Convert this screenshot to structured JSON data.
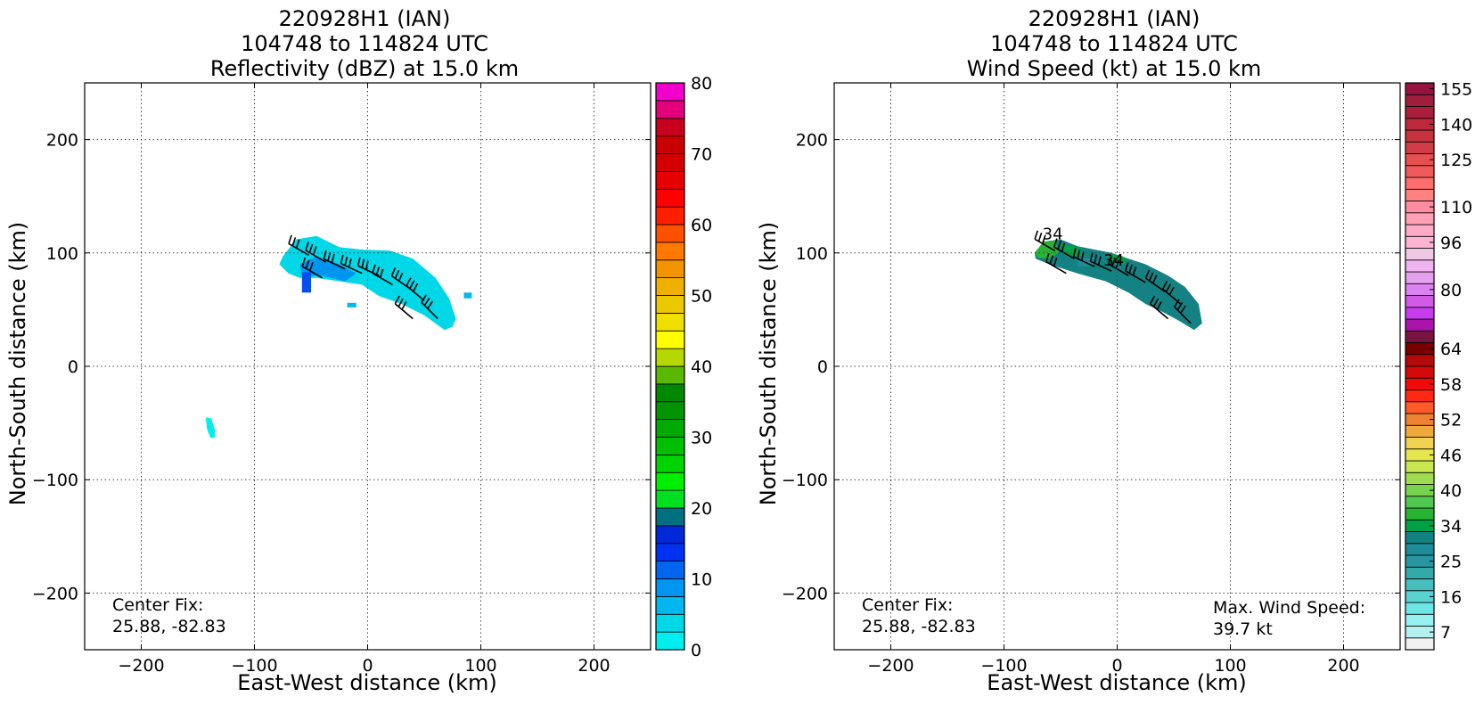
{
  "chart_data": [
    {
      "type": "heatmap",
      "title_lines": [
        "220928H1 (IAN)",
        "104748 to 114824 UTC",
        "Reflectivity (dBZ) at 15.0 km"
      ],
      "xlabel": "East-West distance (km)",
      "ylabel": "North-South distance (km)",
      "xlim": [
        -250,
        250
      ],
      "ylim": [
        -250,
        250
      ],
      "xticks": [
        -200,
        -100,
        0,
        100,
        200
      ],
      "yticks": [
        -200,
        -100,
        0,
        100,
        200
      ],
      "grid": true,
      "annotation_lines": [
        "Center Fix:",
        "25.88, -82.83"
      ],
      "colorbar": {
        "min": 0,
        "max": 80,
        "step": 2.5,
        "ticks": [
          0,
          10,
          20,
          30,
          40,
          50,
          60,
          70,
          80
        ],
        "colors": [
          "#00eeee",
          "#00d8e8",
          "#00b8ee",
          "#0096f0",
          "#0066f0",
          "#0030f0",
          "#0028d8",
          "#007080",
          "#00e020",
          "#00ee00",
          "#00d400",
          "#00be00",
          "#00aa00",
          "#009400",
          "#008800",
          "#5ab800",
          "#b4d800",
          "#ffff00",
          "#f0e000",
          "#ecc800",
          "#f0b000",
          "#f09400",
          "#ff7800",
          "#ff5000",
          "#ff1e00",
          "#ff0000",
          "#e60000",
          "#d40000",
          "#c80000",
          "#c8001e",
          "#e4007a",
          "#f000c8",
          "#e600e6",
          "#c832dc",
          "#aa50d2",
          "#8c46b4",
          "#50285a",
          "#000000"
        ]
      },
      "data_region": {
        "x_range": [
          -80,
          93
        ],
        "y_range": [
          -65,
          117
        ],
        "main_band_vertices": [
          [
            -75,
            97
          ],
          [
            -63,
            112
          ],
          [
            -45,
            115
          ],
          [
            -25,
            105
          ],
          [
            -5,
            103
          ],
          [
            20,
            102
          ],
          [
            40,
            95
          ],
          [
            60,
            78
          ],
          [
            72,
            60
          ],
          [
            78,
            42
          ],
          [
            75,
            35
          ],
          [
            68,
            32
          ],
          [
            50,
            45
          ],
          [
            30,
            55
          ],
          [
            10,
            62
          ],
          [
            -5,
            72
          ],
          [
            -25,
            75
          ],
          [
            -45,
            78
          ],
          [
            -60,
            78
          ],
          [
            -70,
            82
          ],
          [
            -78,
            90
          ]
        ],
        "core_vertices": [
          [
            -60,
            90
          ],
          [
            -45,
            97
          ],
          [
            -25,
            90
          ],
          [
            -10,
            82
          ],
          [
            -20,
            75
          ],
          [
            -40,
            80
          ],
          [
            -58,
            80
          ]
        ],
        "core_color": "#0096f0",
        "cell_vertices": [
          [
            -58,
            83
          ],
          [
            -50,
            83
          ],
          [
            -50,
            65
          ],
          [
            -58,
            65
          ]
        ],
        "cell_color": "#0050f0",
        "small_patches": [
          {
            "vertices": [
              [
                -143,
                -45
              ],
              [
                -138,
                -46
              ],
              [
                -135,
                -56
              ],
              [
                -135,
                -63
              ],
              [
                -139,
                -63
              ],
              [
                -142,
                -55
              ]
            ],
            "color": "#00eeee"
          },
          {
            "vertices": [
              [
                85,
                65
              ],
              [
                92,
                65
              ],
              [
                92,
                60
              ],
              [
                85,
                60
              ]
            ],
            "color": "#00b8ee"
          },
          {
            "vertices": [
              [
                -18,
                56
              ],
              [
                -10,
                56
              ],
              [
                -10,
                52
              ],
              [
                -18,
                52
              ]
            ],
            "color": "#00b8ee"
          }
        ]
      },
      "wind_barbs": [
        {
          "x": -52,
          "y": 98,
          "dir": 300
        },
        {
          "x": -37,
          "y": 92,
          "dir": 300
        },
        {
          "x": -20,
          "y": 86,
          "dir": 295
        },
        {
          "x": -5,
          "y": 82,
          "dir": 295
        },
        {
          "x": 10,
          "y": 80,
          "dir": 295
        },
        {
          "x": 22,
          "y": 72,
          "dir": 300
        },
        {
          "x": 38,
          "y": 68,
          "dir": 305
        },
        {
          "x": 50,
          "y": 58,
          "dir": 310
        },
        {
          "x": -40,
          "y": 78,
          "dir": 300
        },
        {
          "x": 40,
          "y": 42,
          "dir": 310
        },
        {
          "x": 62,
          "y": 42,
          "dir": 315
        }
      ]
    },
    {
      "type": "heatmap",
      "title_lines": [
        "220928H1 (IAN)",
        "104748 to 114824 UTC",
        "Wind Speed (kt) at 15.0 km"
      ],
      "xlabel": "East-West distance (km)",
      "ylabel": "North-South distance (km)",
      "xlim": [
        -250,
        250
      ],
      "ylim": [
        -250,
        250
      ],
      "xticks": [
        -200,
        -100,
        0,
        100,
        200
      ],
      "yticks": [
        -200,
        -100,
        0,
        100,
        200
      ],
      "grid": true,
      "annotation_lines": [
        "Center Fix:",
        "25.88, -82.83"
      ],
      "annotation2_lines": [
        "Max. Wind Speed:",
        "39.7 kt"
      ],
      "colorbar": {
        "min": 4,
        "max": 160,
        "boundaries": [
          4,
          7,
          10,
          13,
          16,
          19,
          22,
          25,
          28,
          31,
          34,
          36,
          38,
          40,
          42,
          44,
          46,
          48,
          50,
          52,
          54,
          56,
          58,
          60,
          62,
          64,
          67,
          70,
          74,
          77,
          80,
          84,
          88,
          92,
          96,
          100,
          104,
          108,
          112,
          116,
          120,
          125,
          130,
          135,
          140,
          145,
          150,
          155,
          160
        ],
        "ticks": [
          7,
          16,
          25,
          34,
          40,
          46,
          52,
          58,
          64,
          80,
          96,
          110,
          125,
          140,
          155
        ],
        "colors": [
          "#f0f0f0",
          "#b4f0f0",
          "#96f0f0",
          "#6ee6e6",
          "#5ad2d2",
          "#46bebe",
          "#32aaaa",
          "#2896a0",
          "#1e8c96",
          "#148282",
          "#00a046",
          "#28b432",
          "#50c850",
          "#78d250",
          "#a0dc50",
          "#c8e650",
          "#e6e650",
          "#f0d250",
          "#f0aa3c",
          "#f08232",
          "#ff5a28",
          "#ff2814",
          "#f00a0a",
          "#d20a0a",
          "#b40a0a",
          "#780000",
          "#781440",
          "#aa14aa",
          "#c83cf0",
          "#d25ae6",
          "#dc82f0",
          "#e6a0f0",
          "#f0b4f0",
          "#f0c8e6",
          "#ffb4d2",
          "#ffaac8",
          "#ffa0b4",
          "#ff8ca0",
          "#ff8282",
          "#ff6e6e",
          "#f05a5a",
          "#e65050",
          "#d23c46",
          "#c8323c",
          "#be283c",
          "#aa1e3c",
          "#a01e3c",
          "#961440"
        ]
      },
      "data_region": {
        "x_range": [
          -75,
          75
        ],
        "y_range": [
          30,
          113
        ],
        "main_band_vertices": [
          [
            -73,
            100
          ],
          [
            -65,
            110
          ],
          [
            -50,
            112
          ],
          [
            -35,
            106
          ],
          [
            -20,
            103
          ],
          [
            -5,
            100
          ],
          [
            10,
            95
          ],
          [
            25,
            90
          ],
          [
            45,
            80
          ],
          [
            60,
            70
          ],
          [
            72,
            55
          ],
          [
            75,
            38
          ],
          [
            68,
            32
          ],
          [
            55,
            40
          ],
          [
            40,
            48
          ],
          [
            25,
            55
          ],
          [
            10,
            65
          ],
          [
            -10,
            75
          ],
          [
            -35,
            82
          ],
          [
            -60,
            90
          ],
          [
            -72,
            95
          ]
        ],
        "main_band_color": "#148282",
        "green_patches": [
          {
            "vertices": [
              [
                -73,
                100
              ],
              [
                -65,
                110
              ],
              [
                -55,
                111
              ],
              [
                -52,
                100
              ],
              [
                -60,
                95
              ],
              [
                -70,
                96
              ]
            ],
            "color": "#28b432"
          },
          {
            "vertices": [
              [
                -50,
                108
              ],
              [
                -35,
                106
              ],
              [
                -30,
                98
              ],
              [
                -45,
                97
              ]
            ],
            "color": "#00a046"
          },
          {
            "vertices": [
              [
                -10,
                100
              ],
              [
                5,
                97
              ],
              [
                10,
                92
              ],
              [
                -5,
                90
              ]
            ],
            "color": "#00a046"
          },
          {
            "vertices": [
              [
                -35,
                95
              ],
              [
                -20,
                96
              ],
              [
                -22,
                88
              ],
              [
                -35,
                88
              ]
            ],
            "color": "#1e8c96"
          }
        ]
      },
      "contour_labels": [
        {
          "x": -57,
          "y": 112,
          "text": "34"
        },
        {
          "x": -3,
          "y": 89,
          "text": "34"
        }
      ],
      "wind_barbs": [
        {
          "x": -55,
          "y": 102,
          "dir": 300
        },
        {
          "x": -38,
          "y": 95,
          "dir": 300
        },
        {
          "x": -20,
          "y": 88,
          "dir": 295
        },
        {
          "x": -5,
          "y": 84,
          "dir": 295
        },
        {
          "x": 10,
          "y": 80,
          "dir": 300
        },
        {
          "x": 25,
          "y": 74,
          "dir": 300
        },
        {
          "x": 42,
          "y": 66,
          "dir": 305
        },
        {
          "x": 56,
          "y": 55,
          "dir": 310
        },
        {
          "x": -45,
          "y": 82,
          "dir": 300
        },
        {
          "x": 45,
          "y": 42,
          "dir": 310
        },
        {
          "x": 65,
          "y": 38,
          "dir": 315
        }
      ]
    }
  ]
}
